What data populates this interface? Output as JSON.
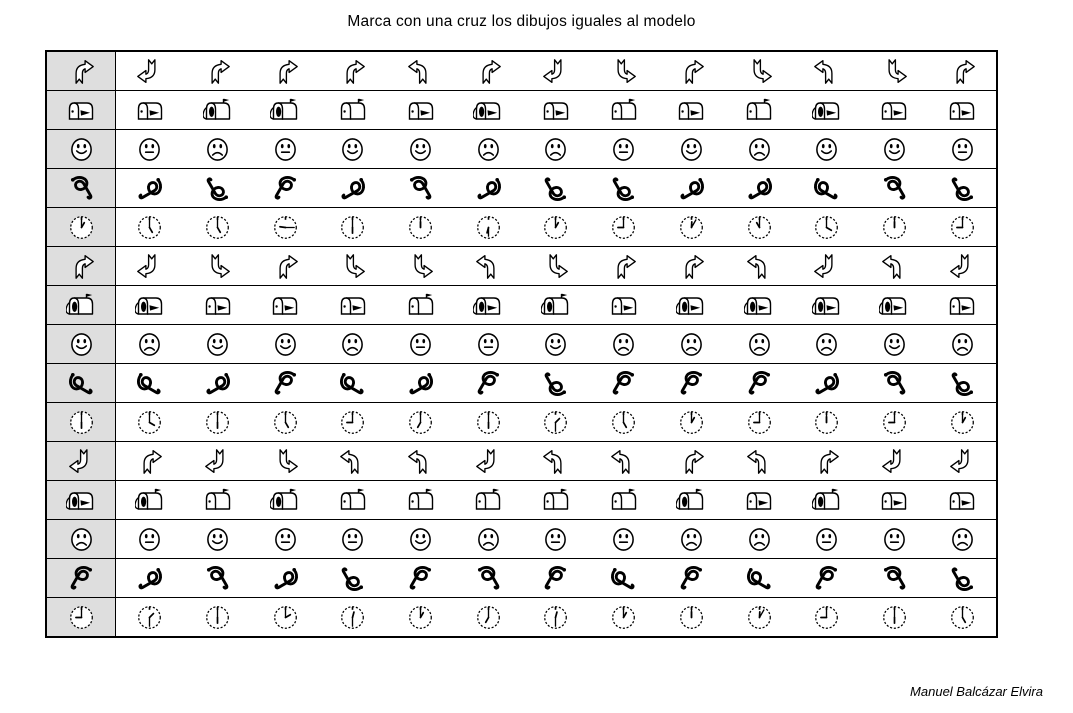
{
  "title": "Marca con una cruz los dibujos iguales al modelo",
  "credit": "Manuel Balcázar Elvira",
  "colors": {
    "page": "#ffffff",
    "model_bg": "#dedede",
    "grid_line": "#000000",
    "ink": "#000000"
  },
  "grid": {
    "rows": [
      {
        "model": {
          "t": "arrow",
          "v": "ne"
        },
        "cells": [
          {
            "t": "arrow",
            "v": "sw"
          },
          {
            "t": "arrow",
            "v": "ne"
          },
          {
            "t": "arrow",
            "v": "ne"
          },
          {
            "t": "arrow",
            "v": "ne"
          },
          {
            "t": "arrow",
            "v": "nw"
          },
          {
            "t": "arrow",
            "v": "ne"
          },
          {
            "t": "arrow",
            "v": "sw"
          },
          {
            "t": "arrow",
            "v": "se"
          },
          {
            "t": "arrow",
            "v": "ne"
          },
          {
            "t": "arrow",
            "v": "se"
          },
          {
            "t": "arrow",
            "v": "nw"
          },
          {
            "t": "arrow",
            "v": "se"
          },
          {
            "t": "arrow",
            "v": "ne"
          }
        ]
      },
      {
        "model": {
          "t": "mailbox",
          "v": "closed-flag-down"
        },
        "cells": [
          {
            "t": "mailbox",
            "v": "closed-flag-down"
          },
          {
            "t": "mailbox",
            "v": "open-flag-up"
          },
          {
            "t": "mailbox",
            "v": "open-flag-up"
          },
          {
            "t": "mailbox",
            "v": "closed-flag-up"
          },
          {
            "t": "mailbox",
            "v": "closed-flag-down"
          },
          {
            "t": "mailbox",
            "v": "open-flag-down"
          },
          {
            "t": "mailbox",
            "v": "closed-flag-down"
          },
          {
            "t": "mailbox",
            "v": "closed-flag-up"
          },
          {
            "t": "mailbox",
            "v": "closed-flag-down"
          },
          {
            "t": "mailbox",
            "v": "closed-flag-up"
          },
          {
            "t": "mailbox",
            "v": "open-flag-down"
          },
          {
            "t": "mailbox",
            "v": "closed-flag-down"
          },
          {
            "t": "mailbox",
            "v": "closed-flag-down"
          }
        ]
      },
      {
        "model": {
          "t": "face",
          "v": "smile"
        },
        "cells": [
          {
            "t": "face",
            "v": "neutral"
          },
          {
            "t": "face",
            "v": "frown"
          },
          {
            "t": "face",
            "v": "neutral"
          },
          {
            "t": "face",
            "v": "smile"
          },
          {
            "t": "face",
            "v": "smile"
          },
          {
            "t": "face",
            "v": "frown"
          },
          {
            "t": "face",
            "v": "frown"
          },
          {
            "t": "face",
            "v": "neutral"
          },
          {
            "t": "face",
            "v": "smile"
          },
          {
            "t": "face",
            "v": "frown"
          },
          {
            "t": "face",
            "v": "smile"
          },
          {
            "t": "face",
            "v": "smile"
          },
          {
            "t": "face",
            "v": "neutral"
          }
        ]
      },
      {
        "model": {
          "t": "loop",
          "v": "a"
        },
        "cells": [
          {
            "t": "loop",
            "v": "b"
          },
          {
            "t": "loop",
            "v": "c"
          },
          {
            "t": "loop",
            "v": "d"
          },
          {
            "t": "loop",
            "v": "b"
          },
          {
            "t": "loop",
            "v": "a"
          },
          {
            "t": "loop",
            "v": "b"
          },
          {
            "t": "loop",
            "v": "c"
          },
          {
            "t": "loop",
            "v": "c"
          },
          {
            "t": "loop",
            "v": "b"
          },
          {
            "t": "loop",
            "v": "b"
          },
          {
            "t": "loop",
            "v": "e"
          },
          {
            "t": "loop",
            "v": "a"
          },
          {
            "t": "loop",
            "v": "c"
          }
        ]
      },
      {
        "model": {
          "t": "clock",
          "v": "1:00"
        },
        "cells": [
          {
            "t": "clock",
            "v": "5:00"
          },
          {
            "t": "clock",
            "v": "5:00"
          },
          {
            "t": "clock",
            "v": "9:15"
          },
          {
            "t": "clock",
            "v": "6:00"
          },
          {
            "t": "clock",
            "v": "12:00"
          },
          {
            "t": "clock",
            "v": "6:30"
          },
          {
            "t": "clock",
            "v": "1:00"
          },
          {
            "t": "clock",
            "v": "9:00"
          },
          {
            "t": "clock",
            "v": "12:05"
          },
          {
            "t": "clock",
            "v": "11:00"
          },
          {
            "t": "clock",
            "v": "4:00"
          },
          {
            "t": "clock",
            "v": "12:00"
          },
          {
            "t": "clock",
            "v": "9:00"
          }
        ]
      },
      {
        "model": {
          "t": "arrow",
          "v": "ne"
        },
        "cells": [
          {
            "t": "arrow",
            "v": "sw"
          },
          {
            "t": "arrow",
            "v": "se"
          },
          {
            "t": "arrow",
            "v": "ne"
          },
          {
            "t": "arrow",
            "v": "se"
          },
          {
            "t": "arrow",
            "v": "se"
          },
          {
            "t": "arrow",
            "v": "nw"
          },
          {
            "t": "arrow",
            "v": "se"
          },
          {
            "t": "arrow",
            "v": "ne"
          },
          {
            "t": "arrow",
            "v": "ne"
          },
          {
            "t": "arrow",
            "v": "nw"
          },
          {
            "t": "arrow",
            "v": "sw"
          },
          {
            "t": "arrow",
            "v": "nw"
          },
          {
            "t": "arrow",
            "v": "sw"
          }
        ]
      },
      {
        "model": {
          "t": "mailbox",
          "v": "open-flag-up"
        },
        "cells": [
          {
            "t": "mailbox",
            "v": "open-flag-down"
          },
          {
            "t": "mailbox",
            "v": "closed-flag-down"
          },
          {
            "t": "mailbox",
            "v": "closed-flag-down"
          },
          {
            "t": "mailbox",
            "v": "closed-flag-down"
          },
          {
            "t": "mailbox",
            "v": "closed-flag-up"
          },
          {
            "t": "mailbox",
            "v": "open-flag-down"
          },
          {
            "t": "mailbox",
            "v": "open-flag-up"
          },
          {
            "t": "mailbox",
            "v": "closed-flag-down"
          },
          {
            "t": "mailbox",
            "v": "open-flag-down"
          },
          {
            "t": "mailbox",
            "v": "open-flag-down"
          },
          {
            "t": "mailbox",
            "v": "open-flag-down"
          },
          {
            "t": "mailbox",
            "v": "open-flag-down"
          },
          {
            "t": "mailbox",
            "v": "closed-flag-down"
          }
        ]
      },
      {
        "model": {
          "t": "face",
          "v": "smile"
        },
        "cells": [
          {
            "t": "face",
            "v": "frown"
          },
          {
            "t": "face",
            "v": "smile"
          },
          {
            "t": "face",
            "v": "smile"
          },
          {
            "t": "face",
            "v": "frown"
          },
          {
            "t": "face",
            "v": "neutral"
          },
          {
            "t": "face",
            "v": "neutral"
          },
          {
            "t": "face",
            "v": "smile"
          },
          {
            "t": "face",
            "v": "frown"
          },
          {
            "t": "face",
            "v": "frown"
          },
          {
            "t": "face",
            "v": "frown"
          },
          {
            "t": "face",
            "v": "frown"
          },
          {
            "t": "face",
            "v": "smile"
          },
          {
            "t": "face",
            "v": "frown"
          }
        ]
      },
      {
        "model": {
          "t": "loop",
          "v": "e"
        },
        "cells": [
          {
            "t": "loop",
            "v": "e"
          },
          {
            "t": "loop",
            "v": "b"
          },
          {
            "t": "loop",
            "v": "d"
          },
          {
            "t": "loop",
            "v": "e"
          },
          {
            "t": "loop",
            "v": "b"
          },
          {
            "t": "loop",
            "v": "d"
          },
          {
            "t": "loop",
            "v": "c"
          },
          {
            "t": "loop",
            "v": "d"
          },
          {
            "t": "loop",
            "v": "d"
          },
          {
            "t": "loop",
            "v": "d"
          },
          {
            "t": "loop",
            "v": "b"
          },
          {
            "t": "loop",
            "v": "a"
          },
          {
            "t": "loop",
            "v": "c"
          }
        ]
      },
      {
        "model": {
          "t": "clock",
          "v": "6:00"
        },
        "cells": [
          {
            "t": "clock",
            "v": "4:00"
          },
          {
            "t": "clock",
            "v": "6:00"
          },
          {
            "t": "clock",
            "v": "5:00"
          },
          {
            "t": "clock",
            "v": "9:00"
          },
          {
            "t": "clock",
            "v": "7:00"
          },
          {
            "t": "clock",
            "v": "6:00"
          },
          {
            "t": "clock",
            "v": "1:30"
          },
          {
            "t": "clock",
            "v": "5:00"
          },
          {
            "t": "clock",
            "v": "1:00"
          },
          {
            "t": "clock",
            "v": "9:00"
          },
          {
            "t": "clock",
            "v": "12:00"
          },
          {
            "t": "clock",
            "v": "9:00"
          },
          {
            "t": "clock",
            "v": "1:00"
          }
        ]
      },
      {
        "model": {
          "t": "arrow",
          "v": "sw"
        },
        "cells": [
          {
            "t": "arrow",
            "v": "ne"
          },
          {
            "t": "arrow",
            "v": "sw"
          },
          {
            "t": "arrow",
            "v": "se"
          },
          {
            "t": "arrow",
            "v": "nw"
          },
          {
            "t": "arrow",
            "v": "nw"
          },
          {
            "t": "arrow",
            "v": "sw"
          },
          {
            "t": "arrow",
            "v": "nw"
          },
          {
            "t": "arrow",
            "v": "nw"
          },
          {
            "t": "arrow",
            "v": "ne"
          },
          {
            "t": "arrow",
            "v": "nw"
          },
          {
            "t": "arrow",
            "v": "ne"
          },
          {
            "t": "arrow",
            "v": "sw"
          },
          {
            "t": "arrow",
            "v": "sw"
          }
        ]
      },
      {
        "model": {
          "t": "mailbox",
          "v": "open-flag-down"
        },
        "cells": [
          {
            "t": "mailbox",
            "v": "open-flag-up"
          },
          {
            "t": "mailbox",
            "v": "closed-flag-up"
          },
          {
            "t": "mailbox",
            "v": "open-flag-up"
          },
          {
            "t": "mailbox",
            "v": "closed-flag-up"
          },
          {
            "t": "mailbox",
            "v": "closed-flag-up"
          },
          {
            "t": "mailbox",
            "v": "closed-flag-up"
          },
          {
            "t": "mailbox",
            "v": "closed-flag-up"
          },
          {
            "t": "mailbox",
            "v": "closed-flag-up"
          },
          {
            "t": "mailbox",
            "v": "open-flag-up"
          },
          {
            "t": "mailbox",
            "v": "closed-flag-down"
          },
          {
            "t": "mailbox",
            "v": "open-flag-up"
          },
          {
            "t": "mailbox",
            "v": "closed-flag-down"
          },
          {
            "t": "mailbox",
            "v": "closed-flag-down"
          }
        ]
      },
      {
        "model": {
          "t": "face",
          "v": "frown"
        },
        "cells": [
          {
            "t": "face",
            "v": "neutral"
          },
          {
            "t": "face",
            "v": "smile"
          },
          {
            "t": "face",
            "v": "neutral"
          },
          {
            "t": "face",
            "v": "neutral"
          },
          {
            "t": "face",
            "v": "smile"
          },
          {
            "t": "face",
            "v": "frown"
          },
          {
            "t": "face",
            "v": "neutral"
          },
          {
            "t": "face",
            "v": "neutral"
          },
          {
            "t": "face",
            "v": "frown"
          },
          {
            "t": "face",
            "v": "frown"
          },
          {
            "t": "face",
            "v": "neutral"
          },
          {
            "t": "face",
            "v": "neutral"
          },
          {
            "t": "face",
            "v": "frown"
          }
        ]
      },
      {
        "model": {
          "t": "loop",
          "v": "d"
        },
        "cells": [
          {
            "t": "loop",
            "v": "b"
          },
          {
            "t": "loop",
            "v": "a"
          },
          {
            "t": "loop",
            "v": "b"
          },
          {
            "t": "loop",
            "v": "c"
          },
          {
            "t": "loop",
            "v": "d"
          },
          {
            "t": "loop",
            "v": "a"
          },
          {
            "t": "loop",
            "v": "d"
          },
          {
            "t": "loop",
            "v": "e"
          },
          {
            "t": "loop",
            "v": "d"
          },
          {
            "t": "loop",
            "v": "e"
          },
          {
            "t": "loop",
            "v": "d"
          },
          {
            "t": "loop",
            "v": "a"
          },
          {
            "t": "loop",
            "v": "c"
          }
        ]
      },
      {
        "model": {
          "t": "clock",
          "v": "9:00"
        },
        "cells": [
          {
            "t": "clock",
            "v": "1:30"
          },
          {
            "t": "clock",
            "v": "6:00"
          },
          {
            "t": "clock",
            "v": "2:00"
          },
          {
            "t": "clock",
            "v": "12:30"
          },
          {
            "t": "clock",
            "v": "1:00"
          },
          {
            "t": "clock",
            "v": "7:00"
          },
          {
            "t": "clock",
            "v": "12:30"
          },
          {
            "t": "clock",
            "v": "1:00"
          },
          {
            "t": "clock",
            "v": "12:00"
          },
          {
            "t": "clock",
            "v": "12:05"
          },
          {
            "t": "clock",
            "v": "9:00"
          },
          {
            "t": "clock",
            "v": "6:00"
          },
          {
            "t": "clock",
            "v": "5:00"
          }
        ]
      }
    ]
  }
}
